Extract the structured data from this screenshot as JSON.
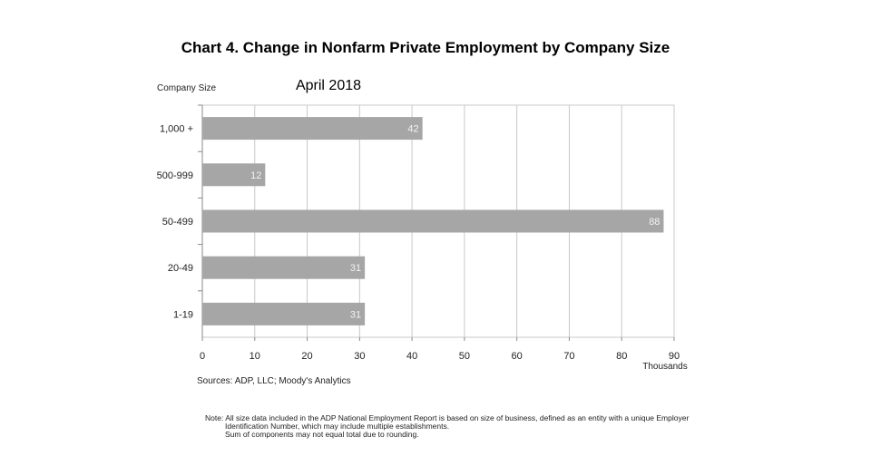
{
  "chart_data": {
    "type": "bar",
    "orientation": "horizontal",
    "title": "Chart 4. Change in Nonfarm Private Employment by Company Size",
    "subtitle": "April 2018",
    "ylabel": "Company Size",
    "xlabel": "Thousands",
    "categories": [
      "1,000 +",
      "500-999",
      "50-499",
      "20-49",
      "1-19"
    ],
    "values": [
      42,
      12,
      88,
      31,
      31
    ],
    "data_labels": [
      "42",
      "12",
      "88",
      "31",
      "31"
    ],
    "xlim": [
      0,
      90
    ],
    "xticks": [
      "0",
      "10",
      "20",
      "30",
      "40",
      "50",
      "60",
      "70",
      "80",
      "90"
    ],
    "grid": true,
    "bar_color": "#a6a6a6",
    "source": "Sources: ADP, LLC; Moody's Analytics",
    "note": [
      "Note:  All size data included in the ADP National Employment Report is based on size of business, defined as an entity with a unique Employer",
      "Identification Number, which may include multiple establishments.",
      "Sum of components may not equal total due to rounding."
    ]
  }
}
